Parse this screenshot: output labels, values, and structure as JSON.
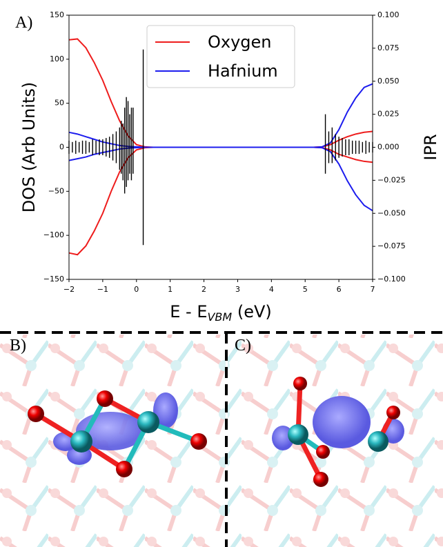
{
  "panel_labels": [
    "A)",
    "B)",
    "C)"
  ],
  "chart_data": {
    "type": "line",
    "ylabel": "DOS (Arb Units)",
    "y2label": "IPR",
    "xlabel": {
      "text": "E - E",
      "sub": "VBM",
      "unit": " (eV)"
    },
    "x": [
      -2,
      -1.75,
      -1.5,
      -1.25,
      -1,
      -0.75,
      -0.5,
      -0.25,
      0,
      0.25,
      0.5,
      0.75,
      1,
      1.25,
      1.5,
      1.75,
      2,
      2.25,
      2.5,
      2.75,
      3,
      3.25,
      3.5,
      3.75,
      4,
      4.25,
      4.5,
      4.75,
      5,
      5.25,
      5.5,
      5.75,
      6,
      6.25,
      6.5,
      6.75,
      7
    ],
    "series": [
      {
        "name": "Oxygen",
        "color": "#ee1c1c",
        "values": [
          122,
          123,
          113,
          96,
          76,
          52,
          30,
          13,
          3,
          0.5,
          0,
          0,
          0,
          0,
          0,
          0,
          0,
          0,
          0,
          0,
          0,
          0,
          0,
          0,
          0,
          0,
          0,
          0,
          0,
          0,
          0.5,
          3,
          8,
          12,
          15,
          17,
          18
        ]
      },
      {
        "name": "Hafnium",
        "color": "#1c1cee",
        "values": [
          17,
          15,
          12,
          9,
          6,
          4,
          2,
          1,
          0.5,
          0,
          0,
          0,
          0,
          0,
          0,
          0,
          0,
          0,
          0,
          0,
          0,
          0,
          0,
          0,
          0,
          0,
          0,
          0,
          0,
          0,
          0.5,
          5,
          20,
          40,
          56,
          68,
          72
        ]
      },
      {
        "color": "#ee1c1c",
        "values": [
          -120,
          -122,
          -112,
          -95,
          -75,
          -50,
          -28,
          -12,
          -3,
          -0.5,
          0,
          0,
          0,
          0,
          0,
          0,
          0,
          0,
          0,
          0,
          0,
          0,
          0,
          0,
          0,
          0,
          0,
          0,
          0,
          0,
          -0.5,
          -3,
          -8,
          -11,
          -14,
          -16,
          -17
        ]
      },
      {
        "color": "#1c1cee",
        "values": [
          -15,
          -13,
          -11,
          -8,
          -6,
          -4,
          -2,
          -1,
          -0.5,
          0,
          0,
          0,
          0,
          0,
          0,
          0,
          0,
          0,
          0,
          0,
          0,
          0,
          0,
          0,
          0,
          0,
          0,
          0,
          0,
          0,
          -0.5,
          -5,
          -19,
          -38,
          -54,
          -66,
          -72
        ]
      }
    ],
    "ipr": {
      "axis": "y2",
      "color": "#000000",
      "x": [
        -2,
        -1.9,
        -1.8,
        -1.7,
        -1.6,
        -1.5,
        -1.4,
        -1.3,
        -1.2,
        -1.1,
        -1.0,
        -0.9,
        -0.8,
        -0.7,
        -0.6,
        -0.5,
        -0.45,
        -0.4,
        -0.35,
        -0.3,
        -0.25,
        -0.2,
        -0.15,
        -0.1,
        0.2,
        5.6,
        5.7,
        5.8,
        5.9,
        6.0,
        6.1,
        6.2,
        6.3,
        6.4,
        6.5,
        6.6,
        6.7,
        6.8,
        6.9,
        7.0
      ],
      "up": [
        0.005,
        0.004,
        0.005,
        0.004,
        0.005,
        0.005,
        0.004,
        0.006,
        0.005,
        0.006,
        0.006,
        0.007,
        0.008,
        0.01,
        0.012,
        0.015,
        0.02,
        0.018,
        0.03,
        0.038,
        0.035,
        0.025,
        0.03,
        0.03,
        0.074,
        0.025,
        0.012,
        0.015,
        0.01,
        0.008,
        0.007,
        0.006,
        0.006,
        0.005,
        0.005,
        0.005,
        0.004,
        0.005,
        0.004,
        0.004
      ],
      "down": [
        -0.005,
        -0.004,
        -0.005,
        -0.004,
        -0.005,
        -0.005,
        -0.004,
        -0.006,
        -0.005,
        -0.006,
        -0.006,
        -0.007,
        -0.008,
        -0.01,
        -0.012,
        -0.017,
        -0.02,
        -0.025,
        -0.035,
        -0.03,
        -0.025,
        -0.02,
        -0.025,
        -0.02,
        -0.074,
        -0.02,
        -0.012,
        -0.012,
        -0.01,
        -0.008,
        -0.007,
        -0.006,
        -0.006,
        -0.005,
        -0.005,
        -0.005,
        -0.004,
        -0.005,
        -0.004,
        -0.004
      ]
    },
    "xlim": [
      -2,
      7
    ],
    "xticks": [
      {
        "value": -2,
        "label": "−2"
      },
      {
        "value": -1,
        "label": "−1"
      },
      0,
      1,
      2,
      3,
      4,
      5,
      6,
      7
    ],
    "ylim": [
      -150,
      150
    ],
    "yticks": [
      {
        "value": -150,
        "label": "−150"
      },
      {
        "value": -100,
        "label": "−100"
      },
      {
        "value": -50,
        "label": "−50"
      },
      0,
      50,
      100,
      150
    ],
    "y2lim": [
      -0.1,
      0.1
    ],
    "y2ticks": [
      {
        "value": -0.1,
        "label": "−0.100"
      },
      {
        "value": -0.075,
        "label": "−0.075"
      },
      {
        "value": -0.05,
        "label": "−0.050"
      },
      {
        "value": -0.025,
        "label": "−0.025"
      },
      {
        "value": 0,
        "label": "0.000"
      },
      {
        "value": 0.025,
        "label": "0.025"
      },
      {
        "value": 0.05,
        "label": "0.050"
      },
      {
        "value": 0.075,
        "label": "0.075"
      },
      {
        "value": 0.1,
        "label": "0.100"
      }
    ],
    "legend": "upper center"
  }
}
